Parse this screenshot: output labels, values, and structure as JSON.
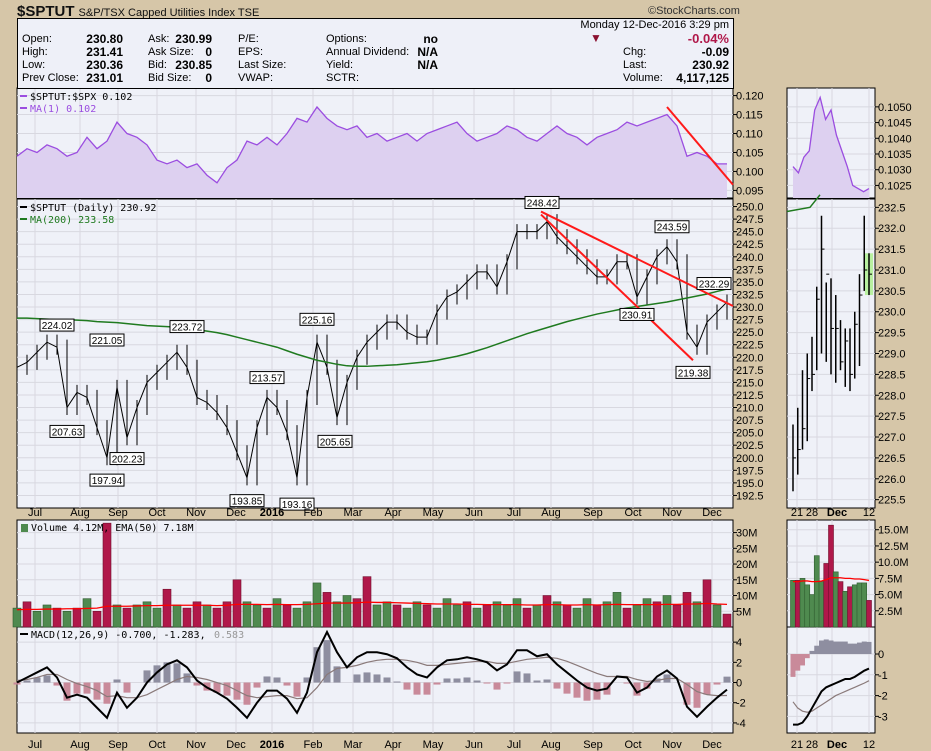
{
  "header": {
    "symbol": "$SPTUT",
    "name": "S&P/TSX Capped Utilities Index",
    "exchange": "TSE",
    "copyright": "©StockCharts.com",
    "datetime": "Monday  12-Dec-2016  3:29 pm",
    "pct_change": "-0.04%",
    "fields": [
      {
        "label": "Open:",
        "value": "230.80"
      },
      {
        "label": "High:",
        "value": "231.41"
      },
      {
        "label": "Low:",
        "value": "230.36"
      },
      {
        "label": "Prev Close:",
        "value": "231.01"
      },
      {
        "label": "Ask:",
        "value": "230.99"
      },
      {
        "label": "Ask Size:",
        "value": "0"
      },
      {
        "label": "Bid:",
        "value": "230.85"
      },
      {
        "label": "Bid Size:",
        "value": "0"
      },
      {
        "label": "P/E:",
        "value": ""
      },
      {
        "label": "EPS:",
        "value": ""
      },
      {
        "label": "Last Size:",
        "value": ""
      },
      {
        "label": "VWAP:",
        "value": ""
      },
      {
        "label": "Options:",
        "value": "no"
      },
      {
        "label": "Annual Dividend:",
        "value": "N/A"
      },
      {
        "label": "Yield:",
        "value": "N/A"
      },
      {
        "label": "SCTR:",
        "value": ""
      },
      {
        "label": "Chg:",
        "value": "-0.09"
      },
      {
        "label": "Last:",
        "value": "230.92"
      },
      {
        "label": "Volume:",
        "value": "4,117,125"
      }
    ]
  },
  "colors": {
    "ratio": "#9b4de0",
    "ratio_fill": "#ddd0f0",
    "ma200": "#1f7a1f",
    "trend": "#ff1a1a",
    "up": "#4f8a4f",
    "down": "#b0184a",
    "ema": "#ff0000",
    "macd": "#000000",
    "signal": "#8a7a7a",
    "hist_pos": "#8e8ea0",
    "hist_neg": "#c98a9a",
    "panel": "#eff1f8"
  },
  "chart_data": [
    {
      "type": "area",
      "panel": "ratio",
      "legend": [
        "$SPTUT:$SPX 0.102",
        "MA(1) 0.102"
      ],
      "ylim": [
        0.093,
        0.122
      ],
      "yticks": [
        "0.120",
        "0.115",
        "0.110",
        "0.105",
        "0.100",
        "0.095"
      ],
      "values": [
        0.104,
        0.106,
        0.105,
        0.107,
        0.106,
        0.104,
        0.105,
        0.109,
        0.106,
        0.108,
        0.113,
        0.11,
        0.109,
        0.107,
        0.103,
        0.102,
        0.103,
        0.101,
        0.102,
        0.099,
        0.097,
        0.101,
        0.103,
        0.108,
        0.107,
        0.109,
        0.107,
        0.11,
        0.114,
        0.113,
        0.117,
        0.114,
        0.112,
        0.111,
        0.112,
        0.109,
        0.11,
        0.108,
        0.109,
        0.11,
        0.108,
        0.11,
        0.111,
        0.112,
        0.113,
        0.11,
        0.108,
        0.109,
        0.11,
        0.112,
        0.111,
        0.109,
        0.108,
        0.11,
        0.112,
        0.11,
        0.109,
        0.107,
        0.109,
        0.11,
        0.111,
        0.113,
        0.112,
        0.113,
        0.114,
        0.115,
        0.112,
        0.104,
        0.105,
        0.104,
        0.102,
        0.102
      ]
    },
    {
      "type": "line",
      "panel": "price",
      "legend": [
        "$SPTUT (Daily) 230.92",
        "MA(200) 233.58"
      ],
      "ylim": [
        190,
        251.5
      ],
      "yticks": [
        "250.0",
        "247.5",
        "245.0",
        "242.5",
        "240.0",
        "237.5",
        "235.0",
        "232.5",
        "230.0",
        "227.5",
        "225.0",
        "222.5",
        "220.0",
        "217.5",
        "215.0",
        "212.5",
        "210.0",
        "207.5",
        "205.0",
        "202.5",
        "200.0",
        "197.5",
        "195.0",
        "192.5"
      ],
      "close": [
        218,
        219,
        221,
        223,
        222,
        210,
        213,
        212,
        206,
        200,
        214,
        204,
        210,
        215,
        217,
        219,
        221,
        218,
        212,
        211,
        209,
        206,
        201,
        196,
        206,
        212,
        210,
        205,
        196,
        212,
        223,
        218,
        208,
        215,
        220,
        223,
        225,
        227,
        227,
        225,
        224,
        224,
        229,
        232,
        233,
        235,
        237,
        237,
        234,
        239,
        245,
        245,
        245,
        247,
        244,
        242,
        240,
        238,
        236,
        236,
        239,
        239,
        232,
        236,
        240,
        242,
        239,
        225,
        222,
        227,
        229,
        231
      ],
      "ma200": [
        227.8,
        227.8,
        227.7,
        227.6,
        227.5,
        227.5,
        227.4,
        227.3,
        227.1,
        227,
        226.9,
        226.7,
        226.5,
        226.3,
        226.2,
        226.1,
        226,
        225.8,
        225.5,
        225.2,
        224.9,
        224.5,
        224,
        223.5,
        223,
        222.5,
        222,
        221.3,
        220.6,
        220,
        219.4,
        219,
        218.6,
        218.3,
        218.2,
        218.2,
        218.3,
        218.4,
        218.5,
        218.7,
        218.9,
        219.1,
        219.4,
        219.8,
        220.2,
        220.7,
        221.3,
        221.9,
        222.6,
        223.3,
        224,
        224.7,
        225.3,
        225.9,
        226.5,
        227.1,
        227.6,
        228.1,
        228.6,
        229,
        229.4,
        229.8,
        230.1,
        230.4,
        230.7,
        231,
        231.4,
        231.8,
        232.2,
        232.6,
        233.1,
        233.58
      ],
      "annotations": [
        {
          "i": 4,
          "v": 224.02,
          "label": "224.02"
        },
        {
          "i": 5,
          "v": 207.63,
          "label": "207.63",
          "below": true
        },
        {
          "i": 9,
          "v": 221.05,
          "label": "221.05"
        },
        {
          "i": 9,
          "v": 197.94,
          "label": "197.94",
          "below": true
        },
        {
          "i": 11,
          "v": 202.23,
          "label": "202.23",
          "below": true
        },
        {
          "i": 17,
          "v": 223.72,
          "label": "223.72"
        },
        {
          "i": 25,
          "v": 213.57,
          "label": "213.57"
        },
        {
          "i": 23,
          "v": 193.85,
          "label": "193.85",
          "below": true
        },
        {
          "i": 28,
          "v": 193.16,
          "label": "193.16",
          "below": true
        },
        {
          "i": 30,
          "v": 225.16,
          "label": "225.16"
        },
        {
          "i": 31.8,
          "v": 205.65,
          "label": "205.65",
          "below": true
        },
        {
          "i": 52.5,
          "v": 248.42,
          "label": "248.42"
        },
        {
          "i": 62,
          "v": 230.91,
          "label": "230.91",
          "below": true
        },
        {
          "i": 65.5,
          "v": 243.59,
          "label": "243.59"
        },
        {
          "i": 67.6,
          "v": 219.38,
          "label": "219.38",
          "below": true
        },
        {
          "i": 70.8,
          "v": 232.29,
          "label": "232.29"
        }
      ],
      "trendlines": [
        {
          "from": [
            52.4,
            249
          ],
          "to": [
            71.6,
            230.2
          ]
        },
        {
          "from": [
            52.4,
            248.4
          ],
          "to": [
            67.6,
            219.4
          ]
        }
      ],
      "ratio_trendline": {
        "from": [
          65,
          0.117
        ],
        "to": [
          71.6,
          0.0965
        ]
      }
    },
    {
      "type": "bar",
      "panel": "volume",
      "legend": "Volume 4.12M, EMA(50) 7.18M",
      "ylim": [
        0,
        34
      ],
      "yticks": [
        "30M",
        "25M",
        "20M",
        "15M",
        "10M",
        "5M"
      ],
      "values": [
        6,
        8,
        5,
        7,
        6,
        5,
        6,
        9,
        5,
        33,
        7,
        6,
        7,
        8,
        6,
        12,
        7,
        6,
        8,
        7,
        6,
        8,
        15,
        8,
        7,
        6,
        9,
        7,
        6,
        8,
        14,
        11,
        8,
        10,
        9,
        16,
        7,
        8,
        7,
        6,
        8,
        7,
        6,
        9,
        7,
        8,
        6,
        7,
        8,
        7,
        9,
        6,
        7,
        10,
        8,
        7,
        6,
        9,
        7,
        8,
        11,
        6,
        7,
        9,
        8,
        10,
        7,
        11,
        8,
        15,
        7,
        4.1
      ],
      "up": [
        1,
        0,
        1,
        1,
        0,
        1,
        0,
        1,
        0,
        0,
        1,
        0,
        1,
        1,
        1,
        0,
        1,
        0,
        0,
        1,
        0,
        0,
        0,
        1,
        1,
        0,
        1,
        0,
        1,
        1,
        1,
        0,
        1,
        1,
        0,
        0,
        1,
        1,
        0,
        1,
        1,
        0,
        1,
        1,
        1,
        0,
        1,
        0,
        1,
        1,
        1,
        0,
        1,
        0,
        1,
        0,
        1,
        1,
        0,
        1,
        1,
        0,
        1,
        1,
        0,
        1,
        0,
        0,
        1,
        0,
        1,
        0
      ],
      "ema": [
        5.5,
        5.6,
        5.6,
        5.7,
        5.7,
        5.8,
        5.8,
        5.9,
        6,
        6.6,
        6.6,
        6.6,
        6.7,
        6.8,
        6.8,
        6.9,
        6.9,
        6.9,
        6.9,
        6.9,
        6.8,
        6.9,
        7.2,
        7.2,
        7.2,
        7.1,
        7.2,
        7.1,
        7.1,
        7.2,
        7.4,
        7.6,
        7.6,
        7.6,
        7.7,
        7.9,
        7.8,
        7.8,
        7.7,
        7.6,
        7.5,
        7.4,
        7.3,
        7.3,
        7.3,
        7.2,
        7.2,
        7.1,
        7.1,
        7.1,
        7.1,
        7.0,
        7.0,
        7.1,
        7.1,
        7.0,
        7.0,
        7.1,
        7.0,
        7.1,
        7.2,
        7.1,
        7.1,
        7.1,
        7.1,
        7.2,
        7.2,
        7.3,
        7.3,
        7.5,
        7.3,
        7.18
      ]
    },
    {
      "type": "line",
      "panel": "macd",
      "legend": [
        "MACD(12,26,9) -0.700, -1.283,",
        "0.583"
      ],
      "ylim": [
        -5,
        5.5
      ],
      "yticks": [
        "4",
        "2",
        "0",
        "-2",
        "-4"
      ],
      "macd": [
        0,
        0.5,
        1,
        1.5,
        0.5,
        -1.5,
        -1.2,
        -1.5,
        -2.5,
        -3.5,
        -1,
        -2.5,
        -1.5,
        0,
        1,
        1.8,
        2.2,
        1.5,
        0.2,
        -0.5,
        -1,
        -1.6,
        -2.5,
        -3.5,
        -2,
        -0.8,
        -0.8,
        -1.6,
        -3,
        -1,
        3,
        5,
        3,
        1.5,
        2.5,
        3,
        3,
        2.8,
        2.4,
        1.5,
        0.8,
        0.5,
        1.5,
        2.2,
        2.3,
        2.5,
        2.3,
        2,
        1.2,
        1.8,
        3.2,
        3.2,
        2.6,
        2.8,
        1.8,
        1,
        0.2,
        -0.5,
        -0.8,
        -0.6,
        0.6,
        0.5,
        -1,
        -0.5,
        0.6,
        1.2,
        0.4,
        -2.4,
        -3.4,
        -2.4,
        -1.5,
        -0.7
      ],
      "signal": [
        0.2,
        0.3,
        0.5,
        0.8,
        0.8,
        0.3,
        -0.1,
        -0.4,
        -0.8,
        -1.4,
        -1.3,
        -1.5,
        -1.5,
        -1.2,
        -0.7,
        -0.2,
        0.3,
        0.6,
        0.5,
        0.3,
        0,
        -0.3,
        -0.8,
        -1.3,
        -1.5,
        -1.4,
        -1.3,
        -1.3,
        -1.6,
        -1.5,
        -0.5,
        0.8,
        1.4,
        1.5,
        1.7,
        2,
        2.2,
        2.3,
        2.3,
        2.2,
        2,
        1.7,
        1.7,
        1.8,
        1.9,
        2,
        2.1,
        2.1,
        1.9,
        1.9,
        2.1,
        2.3,
        2.4,
        2.5,
        2.4,
        2.1,
        1.7,
        1.3,
        0.9,
        0.6,
        0.6,
        0.6,
        0.3,
        0.1,
        0.2,
        0.4,
        0.4,
        -0.2,
        -0.9,
        -1.2,
        -1.3,
        -1.283
      ]
    },
    {
      "type": "ohlc",
      "panel": "mini-price",
      "ylim": [
        225.3,
        232.7
      ],
      "yticks": [
        "232.5",
        "232.0",
        "231.5",
        "231.0",
        "230.5",
        "230.0",
        "229.5",
        "229.0",
        "228.5",
        "228.0",
        "227.5",
        "227.0",
        "226.5",
        "226.0",
        "225.5"
      ],
      "bars": [
        [
          225.7,
          227.3,
          226.5
        ],
        [
          226.1,
          227.7,
          226.7
        ],
        [
          226.7,
          228.6,
          227.2
        ],
        [
          226.9,
          229.0,
          228.4
        ],
        [
          228.1,
          229.4,
          228.5
        ],
        [
          228.6,
          230.6,
          230.3
        ],
        [
          229.0,
          232.3,
          231.5
        ],
        [
          228.8,
          230.7,
          230.9
        ],
        [
          228.5,
          230.8,
          229.6
        ],
        [
          228.3,
          230.4,
          229.6
        ],
        [
          228.6,
          229.8,
          228.8
        ],
        [
          228.2,
          229.6,
          229.3
        ],
        [
          228.1,
          229.6,
          228.5
        ],
        [
          228.4,
          230.0,
          229.7
        ],
        [
          228.7,
          230.9,
          230.4
        ],
        [
          230.5,
          232.3,
          231.0
        ],
        [
          230.4,
          231.4,
          230.9
        ]
      ]
    },
    {
      "type": "area",
      "panel": "mini-ratio",
      "ylim": [
        0.1021,
        0.1056
      ],
      "yticks": [
        "0.1050",
        "0.1045",
        "0.1040",
        "0.1035",
        "0.1030",
        "0.1025"
      ],
      "values": [
        0.1031,
        0.1029,
        0.1034,
        0.1036,
        0.1049,
        0.1053,
        0.1046,
        0.1049,
        0.1041,
        0.1036,
        0.1031,
        0.1025,
        0.1024,
        0.1023,
        0.1024
      ]
    },
    {
      "type": "bar",
      "panel": "mini-volume",
      "ylim": [
        0,
        16.5
      ],
      "yticks": [
        "15.0M",
        "12.5M",
        "10.0M",
        "7.5M",
        "5.0M",
        "2.5M"
      ],
      "values": [
        7.2,
        7.2,
        7.5,
        6.5,
        5.0,
        11.0,
        7.0,
        9.8,
        15.7,
        8.5,
        7.0,
        5.5,
        6.2,
        6.5,
        6.8,
        6.8,
        4.1
      ],
      "up": [
        1,
        0,
        1,
        1,
        1,
        1,
        1,
        0,
        0,
        1,
        0,
        1,
        0,
        1,
        1,
        1,
        0
      ],
      "ema": [
        7,
        7,
        7.1,
        7.1,
        7,
        7,
        7.1,
        7.3,
        7.6,
        7.6,
        7.6,
        7.5,
        7.5,
        7.4,
        7.4,
        7.3,
        7.18
      ]
    },
    {
      "type": "line",
      "panel": "mini-macd",
      "ylim": [
        -3.8,
        1.3
      ],
      "yticks": [
        "0",
        "-1",
        "-2",
        "-3"
      ],
      "macd": [
        -3.4,
        -3.4,
        -3.3,
        -3.0,
        -2.6,
        -2.2,
        -1.8,
        -1.6,
        -1.5,
        -1.4,
        -1.3,
        -1.2,
        -1.2,
        -1.1,
        -0.95,
        -0.8,
        -0.7
      ],
      "signal": [
        -2.3,
        -2.6,
        -2.75,
        -2.8,
        -2.75,
        -2.6,
        -2.45,
        -2.3,
        -2.15,
        -2.0,
        -1.9,
        -1.8,
        -1.7,
        -1.6,
        -1.5,
        -1.4,
        -1.283
      ]
    }
  ],
  "xaxis": {
    "months": [
      "Jul",
      "Aug",
      "Sep",
      "Oct",
      "Nov",
      "Dec",
      "2016",
      "Feb",
      "Mar",
      "Apr",
      "May",
      "Jun",
      "Jul",
      "Aug",
      "Sep",
      "Oct",
      "Nov",
      "Dec"
    ],
    "mini": [
      "21",
      "28",
      "Dec",
      "12"
    ]
  }
}
